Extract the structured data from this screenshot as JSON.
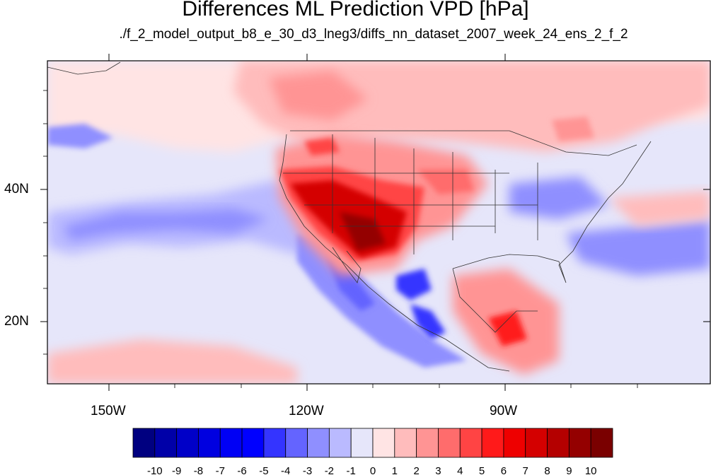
{
  "title": "Differences ML Prediction VPD [hPa]",
  "subtitle": "./f_2_model_output_b8_e_30_d3_lneg3/diffs_nn_dataset_2007_week_24_ens_2_f_2",
  "axes": {
    "lon_labels": [
      "150W",
      "120W",
      "90W"
    ],
    "lat_labels": [
      "40N",
      "20N"
    ]
  },
  "colorbar": {
    "labels": [
      "-10",
      "-9",
      "-8",
      "-7",
      "-6",
      "-5",
      "-4",
      "-3",
      "-2",
      "-1",
      "0",
      "1",
      "2",
      "3",
      "4",
      "5",
      "6",
      "7",
      "8",
      "9",
      "10"
    ],
    "colors": [
      "#000080",
      "#0000a8",
      "#0000c8",
      "#0000e0",
      "#0000f5",
      "#0000ff",
      "#3434ff",
      "#6464ff",
      "#8f8fff",
      "#babaff",
      "#e6e6fa",
      "#ffe4e4",
      "#ffbcbc",
      "#ff9494",
      "#ff6c6c",
      "#ff4444",
      "#ff1a1a",
      "#ee0000",
      "#d40000",
      "#b40000",
      "#940000",
      "#7a0000"
    ]
  }
}
